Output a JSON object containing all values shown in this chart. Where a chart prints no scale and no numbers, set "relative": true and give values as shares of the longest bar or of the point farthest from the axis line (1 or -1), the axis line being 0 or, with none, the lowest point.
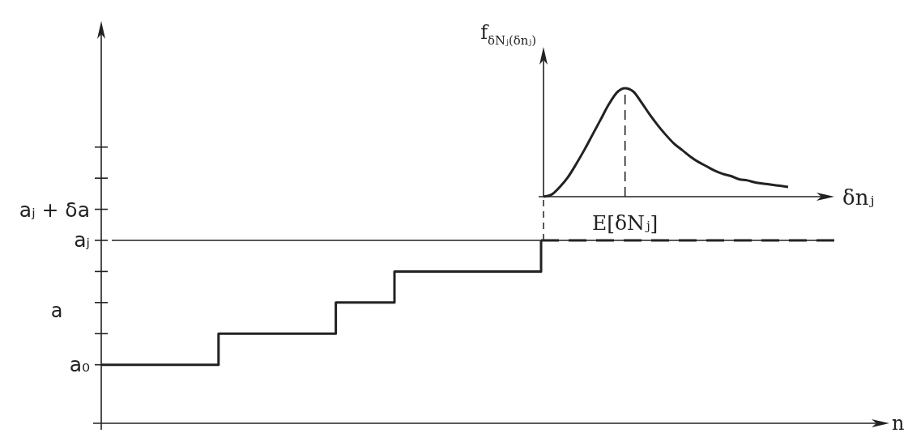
{
  "chart_data": [
    {
      "type": "step",
      "relative": true,
      "ylabel": "a",
      "xlabel": "n",
      "categories": [
        null,
        null,
        null,
        null,
        null,
        null,
        null,
        null,
        null,
        null,
        null,
        null,
        null,
        null,
        null,
        null,
        null,
        null,
        null,
        null,
        null,
        null,
        null,
        null,
        null,
        null
      ],
      "series": [
        {
          "color": "#222222",
          "values": [
            0.32,
            0.32,
            0.32,
            0.32,
            0.49,
            0.49,
            0.49,
            0.49,
            0.66,
            0.66,
            0.83,
            0.83,
            0.83,
            0.83,
            0.83,
            1,
            null,
            null,
            null,
            null,
            null,
            null,
            null,
            null,
            null,
            null
          ]
        },
        {
          "color": "#222222",
          "line_style": "dashed",
          "values": [
            null,
            null,
            null,
            null,
            null,
            null,
            null,
            null,
            null,
            null,
            null,
            null,
            null,
            null,
            null,
            1,
            1,
            1,
            1,
            1,
            1,
            1,
            1,
            1,
            1,
            1
          ]
        }
      ],
      "annotations": [
        "a₀",
        "aⱼ + δa"
      ],
      "ref_lines": [
        {
          "axis": "y",
          "value": 1,
          "label": "aⱼ",
          "color": "#222222"
        }
      ]
    },
    {
      "type": "line",
      "relative": true,
      "xlabel": "δnⱼ",
      "ylabel": "f$_{δNⱼ(δnⱼ)}$",
      "categories": [
        null,
        null,
        null,
        null,
        null,
        null,
        null,
        null,
        null,
        null,
        null,
        null,
        null,
        null,
        null,
        null,
        null,
        null,
        null,
        null,
        null,
        null,
        null,
        null,
        null,
        null,
        null,
        null,
        null,
        null,
        null
      ],
      "color": "#222222",
      "values": [
        0,
        0.02,
        0.09,
        0.18,
        0.3,
        0.43,
        0.57,
        0.71,
        0.85,
        0.96,
        1,
        0.97,
        0.87,
        0.76,
        0.66,
        0.57,
        0.49,
        0.43,
        0.37,
        0.32,
        0.28,
        0.24,
        0.21,
        0.19,
        0.16,
        0.15,
        0.13,
        0.12,
        0.11,
        0.1,
        0.09
      ],
      "annotations": [
        {
          "text": "E[δNⱼ]",
          "y": 1
        }
      ]
    }
  ]
}
